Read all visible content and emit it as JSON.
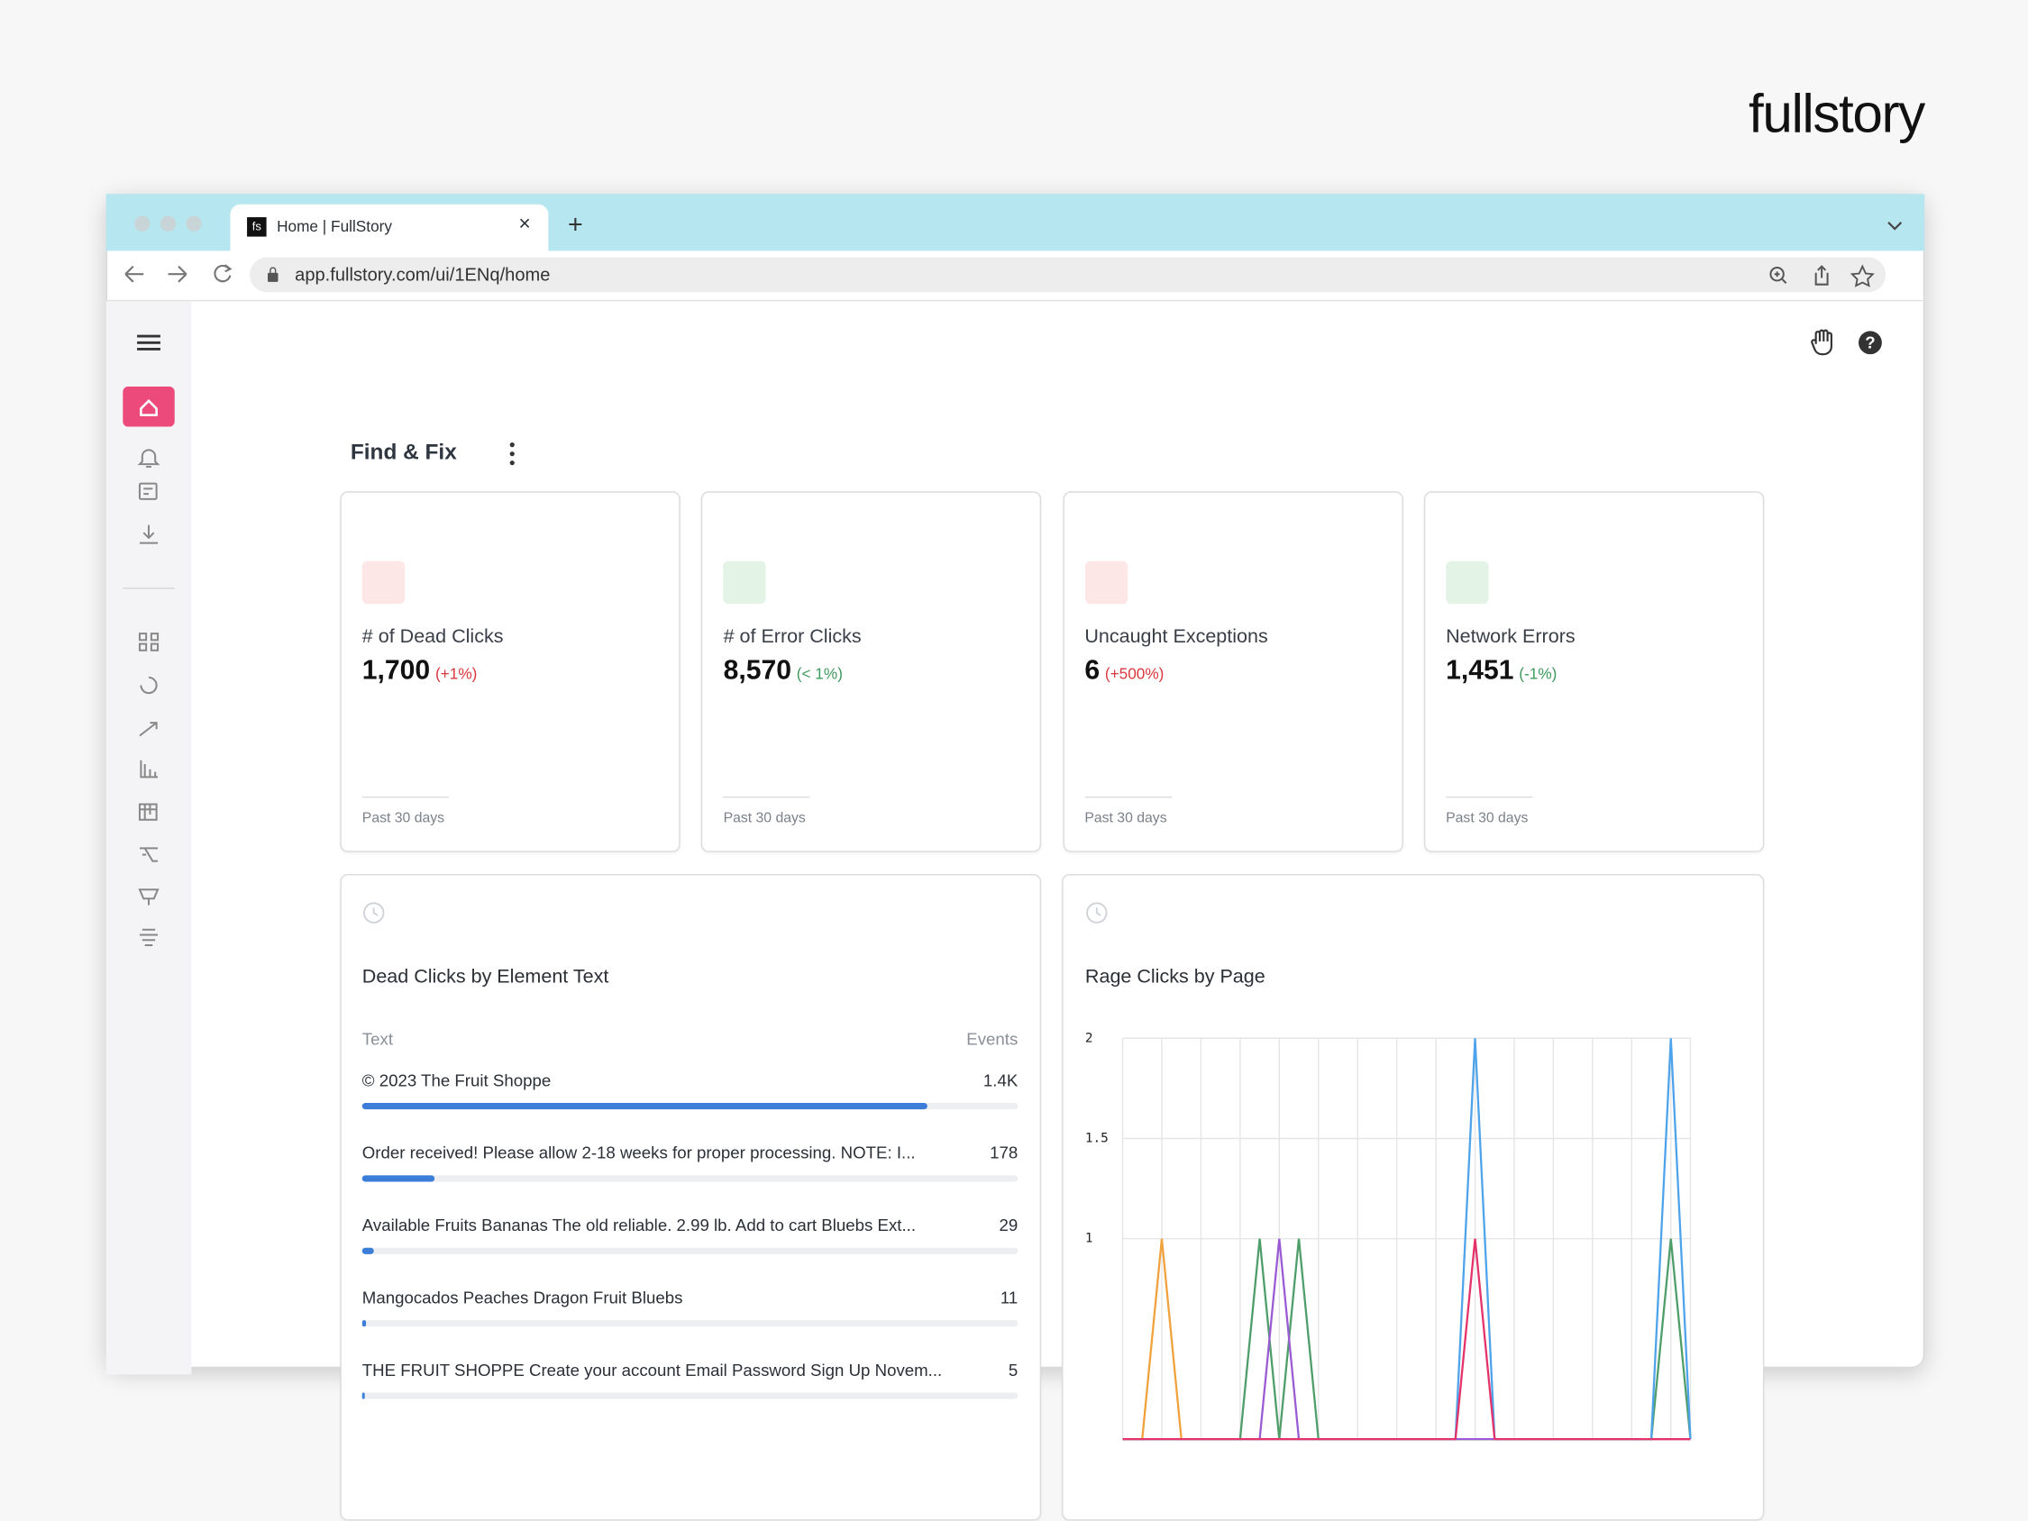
{
  "brand": "fullstory",
  "browser": {
    "tab_title": "Home | FullStory",
    "url": "app.fullstory.com/ui/1ENq/home"
  },
  "section_title": "Find & Fix",
  "metrics": [
    {
      "label": "# of Dead Clicks",
      "value": "1,700",
      "change": "(+1%)",
      "trend": "up",
      "period": "Past 30 days"
    },
    {
      "label": "# of Error Clicks",
      "value": "8,570",
      "change": "(< 1%)",
      "trend": "down",
      "period": "Past 30 days"
    },
    {
      "label": "Uncaught Exceptions",
      "value": "6",
      "change": "(+500%)",
      "trend": "up",
      "period": "Past 30 days"
    },
    {
      "label": "Network Errors",
      "value": "1,451",
      "change": "(-1%)",
      "trend": "down",
      "period": "Past 30 days"
    }
  ],
  "table": {
    "title": "Dead Clicks by Element Text",
    "header": [
      "Text",
      "Events"
    ],
    "rows": [
      {
        "text": "© 2023 The Fruit Shoppe",
        "events": 1400,
        "events_label": "1.4K"
      },
      {
        "text": "Order received! Please allow 2-18 weeks for proper processing. NOTE: I...",
        "events": 178
      },
      {
        "text": "Available Fruits Bananas The old reliable. 2.99 lb. Add to cart Bluebs Ext...",
        "events": 29
      },
      {
        "text": "Mangocados Peaches Dragon Fruit Bluebs",
        "events": 11
      },
      {
        "text": "THE FRUIT SHOPPE Create your account Email Password Sign Up Novem...",
        "events": 5
      }
    ]
  },
  "chart_data": {
    "type": "line",
    "title": "Rage Clicks by Page",
    "categories": [
      null,
      null,
      null,
      null,
      null,
      null,
      null,
      null,
      null,
      null,
      null,
      null,
      null,
      null,
      null,
      null,
      null,
      null,
      null,
      null,
      null,
      null,
      null,
      null,
      null,
      null,
      null,
      null,
      null,
      null
    ],
    "series": [
      {
        "color": "#f0a23c",
        "values": [
          0,
          0,
          1,
          0,
          0,
          0,
          0,
          0,
          0,
          0,
          0,
          0,
          0,
          0,
          0,
          0,
          0,
          0,
          0,
          0,
          0,
          0,
          0,
          0,
          0,
          0,
          0,
          0,
          0,
          0
        ]
      },
      {
        "color": "#4f9e6a",
        "values": [
          0,
          0,
          0,
          0,
          0,
          0,
          0,
          1,
          0,
          1,
          0,
          0,
          0,
          0,
          0,
          0,
          0,
          0,
          0,
          0,
          0,
          0,
          0,
          0,
          0,
          0,
          0,
          0,
          1,
          0
        ]
      },
      {
        "color": "#9b5bd4",
        "values": [
          0,
          0,
          0,
          0,
          0,
          0,
          0,
          0,
          1,
          0,
          0,
          0,
          0,
          0,
          0,
          0,
          0,
          0,
          0,
          0,
          0,
          0,
          0,
          0,
          0,
          0,
          0,
          0,
          0,
          0
        ]
      },
      {
        "color": "#4ea3ea",
        "values": [
          0,
          0,
          0,
          0,
          0,
          0,
          0,
          0,
          0,
          0,
          0,
          0,
          0,
          0,
          0,
          0,
          0,
          0,
          2,
          0,
          0,
          0,
          0,
          0,
          0,
          0,
          0,
          0,
          2,
          0
        ]
      },
      {
        "color": "#e3336a",
        "values": [
          0,
          0,
          0,
          0,
          0,
          0,
          0,
          0,
          0,
          0,
          0,
          0,
          0,
          0,
          0,
          0,
          0,
          0,
          1,
          0,
          0,
          0,
          0,
          0,
          0,
          0,
          0,
          0,
          0,
          0
        ]
      }
    ],
    "ylim": [
      0,
      2
    ],
    "yticks": [
      1,
      1.5,
      2
    ],
    "grid": true
  }
}
